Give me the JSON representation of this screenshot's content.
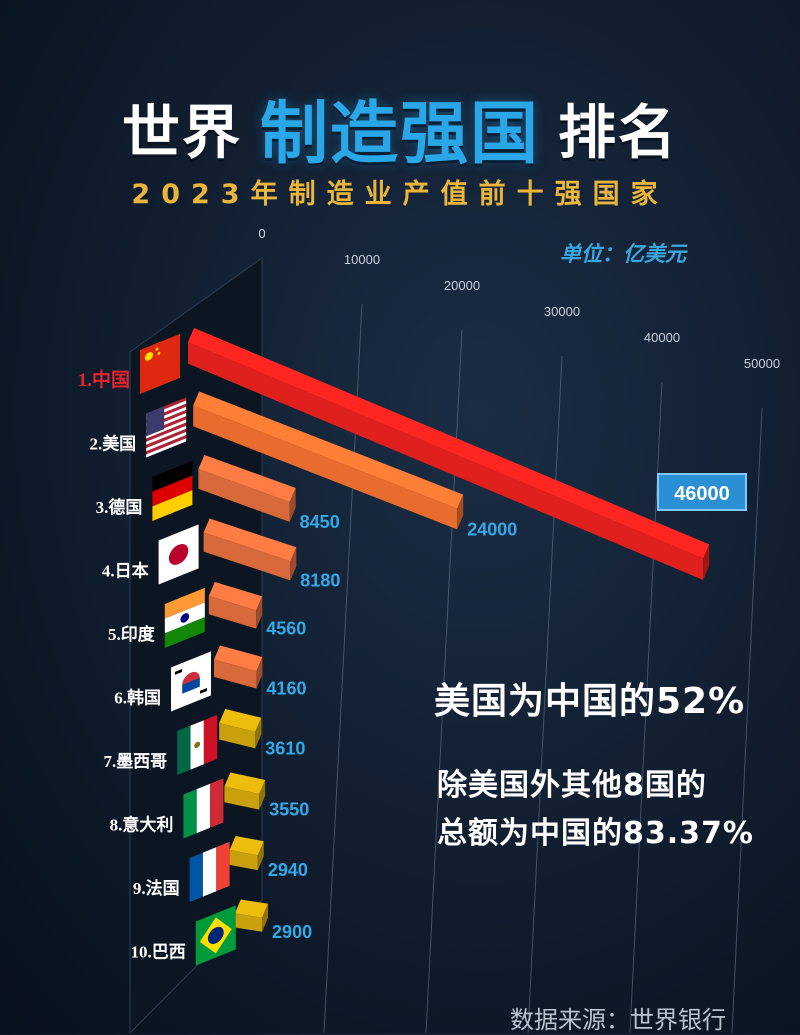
{
  "title": {
    "part1": "世界",
    "highlight": "制造强国",
    "part2": "排名"
  },
  "subtitle": "2023年制造业产值前十强国家",
  "unit": "单位：亿美元",
  "notes": {
    "line1": "美国为中国的52%",
    "line2a": "除美国外其他8国的",
    "line2b": "总额为中国的83.37%"
  },
  "source": "数据来源：世界银行",
  "colors": {
    "background": "#101d2e",
    "title_accent": "#2aa7e8",
    "subtitle": "#e9b53b",
    "value_label": "#33a9e8",
    "bar_red": "#e0201c",
    "bar_orange": "#e86c2e",
    "bar_brick": "#d8693a",
    "bar_gold": "#c9a00c"
  },
  "chart_data": {
    "type": "bar",
    "orientation": "horizontal",
    "style": "3d",
    "categories": [
      "1.中国",
      "2.美国",
      "3.德国",
      "4.日本",
      "5.印度",
      "6.韩国",
      "7.墨西哥",
      "8.意大利",
      "9.法国",
      "10.巴西"
    ],
    "flags": [
      "china-flag-icon",
      "usa-flag-icon",
      "germany-flag-icon",
      "japan-flag-icon",
      "india-flag-icon",
      "korea-flag-icon",
      "mexico-flag-icon",
      "italy-flag-icon",
      "france-flag-icon",
      "brazil-flag-icon"
    ],
    "values": [
      46000,
      24000,
      8450,
      8180,
      4560,
      4160,
      3610,
      3550,
      2940,
      2900
    ],
    "value_labels": [
      "46000",
      "24000",
      "8450",
      "8180",
      "4560",
      "4160",
      "3610",
      "3550",
      "2940",
      "2900"
    ],
    "bar_colors": [
      "#e0201c",
      "#e86c2e",
      "#d8693a",
      "#d8693a",
      "#d8693a",
      "#d8693a",
      "#c9a00c",
      "#c9a00c",
      "#c9a00c",
      "#c9a00c"
    ],
    "axis_ticks": [
      "0",
      "10000",
      "20000",
      "30000",
      "40000",
      "50000"
    ],
    "xlim": [
      0,
      50000
    ],
    "grid": true
  }
}
